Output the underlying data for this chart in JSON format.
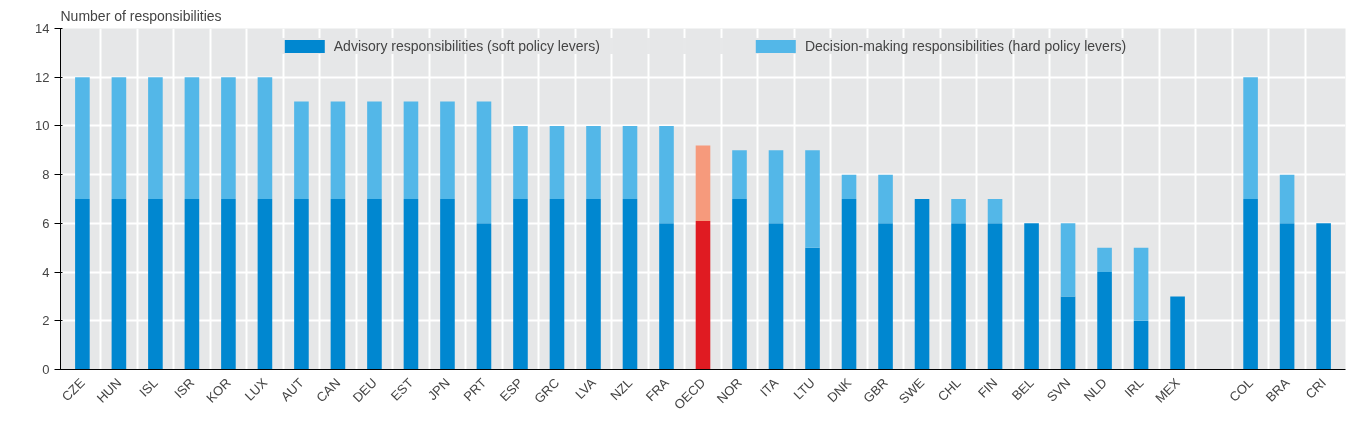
{
  "chart_data": {
    "type": "bar",
    "stacked": true,
    "ylabel": "Number of responsibilities",
    "categories": [
      "CZE",
      "HUN",
      "ISL",
      "ISR",
      "KOR",
      "LUX",
      "AUT",
      "CAN",
      "DEU",
      "EST",
      "JPN",
      "PRT",
      "ESP",
      "GRC",
      "LVA",
      "NZL",
      "FRA",
      "OECD",
      "NOR",
      "ITA",
      "LTU",
      "DNK",
      "GBR",
      "SWE",
      "CHL",
      "FIN",
      "BEL",
      "SVN",
      "NLD",
      "IRL",
      "MEX",
      null,
      "COL",
      "BRA",
      "CRI"
    ],
    "series": [
      {
        "name": "Advisory responsibilities (soft policy levers)",
        "colors": [
          "#0087d0",
          "#0087d0",
          "#0087d0",
          "#0087d0",
          "#0087d0",
          "#0087d0",
          "#0087d0",
          "#0087d0",
          "#0087d0",
          "#0087d0",
          "#0087d0",
          "#0087d0",
          "#0087d0",
          "#0087d0",
          "#0087d0",
          "#0087d0",
          "#0087d0",
          "#e01b22",
          "#0087d0",
          "#0087d0",
          "#0087d0",
          "#0087d0",
          "#0087d0",
          "#0087d0",
          "#0087d0",
          "#0087d0",
          "#0087d0",
          "#0087d0",
          "#0087d0",
          "#0087d0",
          "#0087d0",
          "#0087d0",
          "#0087d0",
          "#0087d0",
          "#0087d0"
        ],
        "values": [
          7,
          7,
          7,
          7,
          7,
          7,
          7,
          7,
          7,
          7,
          7,
          6,
          7,
          7,
          7,
          7,
          6,
          6.1,
          7,
          6,
          5,
          7,
          6,
          7,
          6,
          6,
          6,
          3,
          4,
          2,
          3,
          null,
          7,
          6,
          6
        ]
      },
      {
        "name": "Decision-making responsibilities (hard policy levers)",
        "colors": [
          "#53b7e8",
          "#53b7e8",
          "#53b7e8",
          "#53b7e8",
          "#53b7e8",
          "#53b7e8",
          "#53b7e8",
          "#53b7e8",
          "#53b7e8",
          "#53b7e8",
          "#53b7e8",
          "#53b7e8",
          "#53b7e8",
          "#53b7e8",
          "#53b7e8",
          "#53b7e8",
          "#53b7e8",
          "#f69a7c",
          "#53b7e8",
          "#53b7e8",
          "#53b7e8",
          "#53b7e8",
          "#53b7e8",
          "#53b7e8",
          "#53b7e8",
          "#53b7e8",
          "#53b7e8",
          "#53b7e8",
          "#53b7e8",
          "#53b7e8",
          "#53b7e8",
          "#53b7e8",
          "#53b7e8",
          "#53b7e8",
          "#53b7e8"
        ],
        "values": [
          5,
          5,
          5,
          5,
          5,
          5,
          4,
          4,
          4,
          4,
          4,
          5,
          3,
          3,
          3,
          3,
          4,
          3.1,
          2,
          3,
          4,
          1,
          2,
          0,
          1,
          1,
          0,
          3,
          1,
          3,
          0,
          null,
          5,
          2,
          0
        ]
      }
    ],
    "ylim": [
      0,
      14
    ],
    "yticks": [
      0,
      2,
      4,
      6,
      8,
      10,
      12,
      14
    ],
    "grid": true,
    "legend": "top"
  }
}
